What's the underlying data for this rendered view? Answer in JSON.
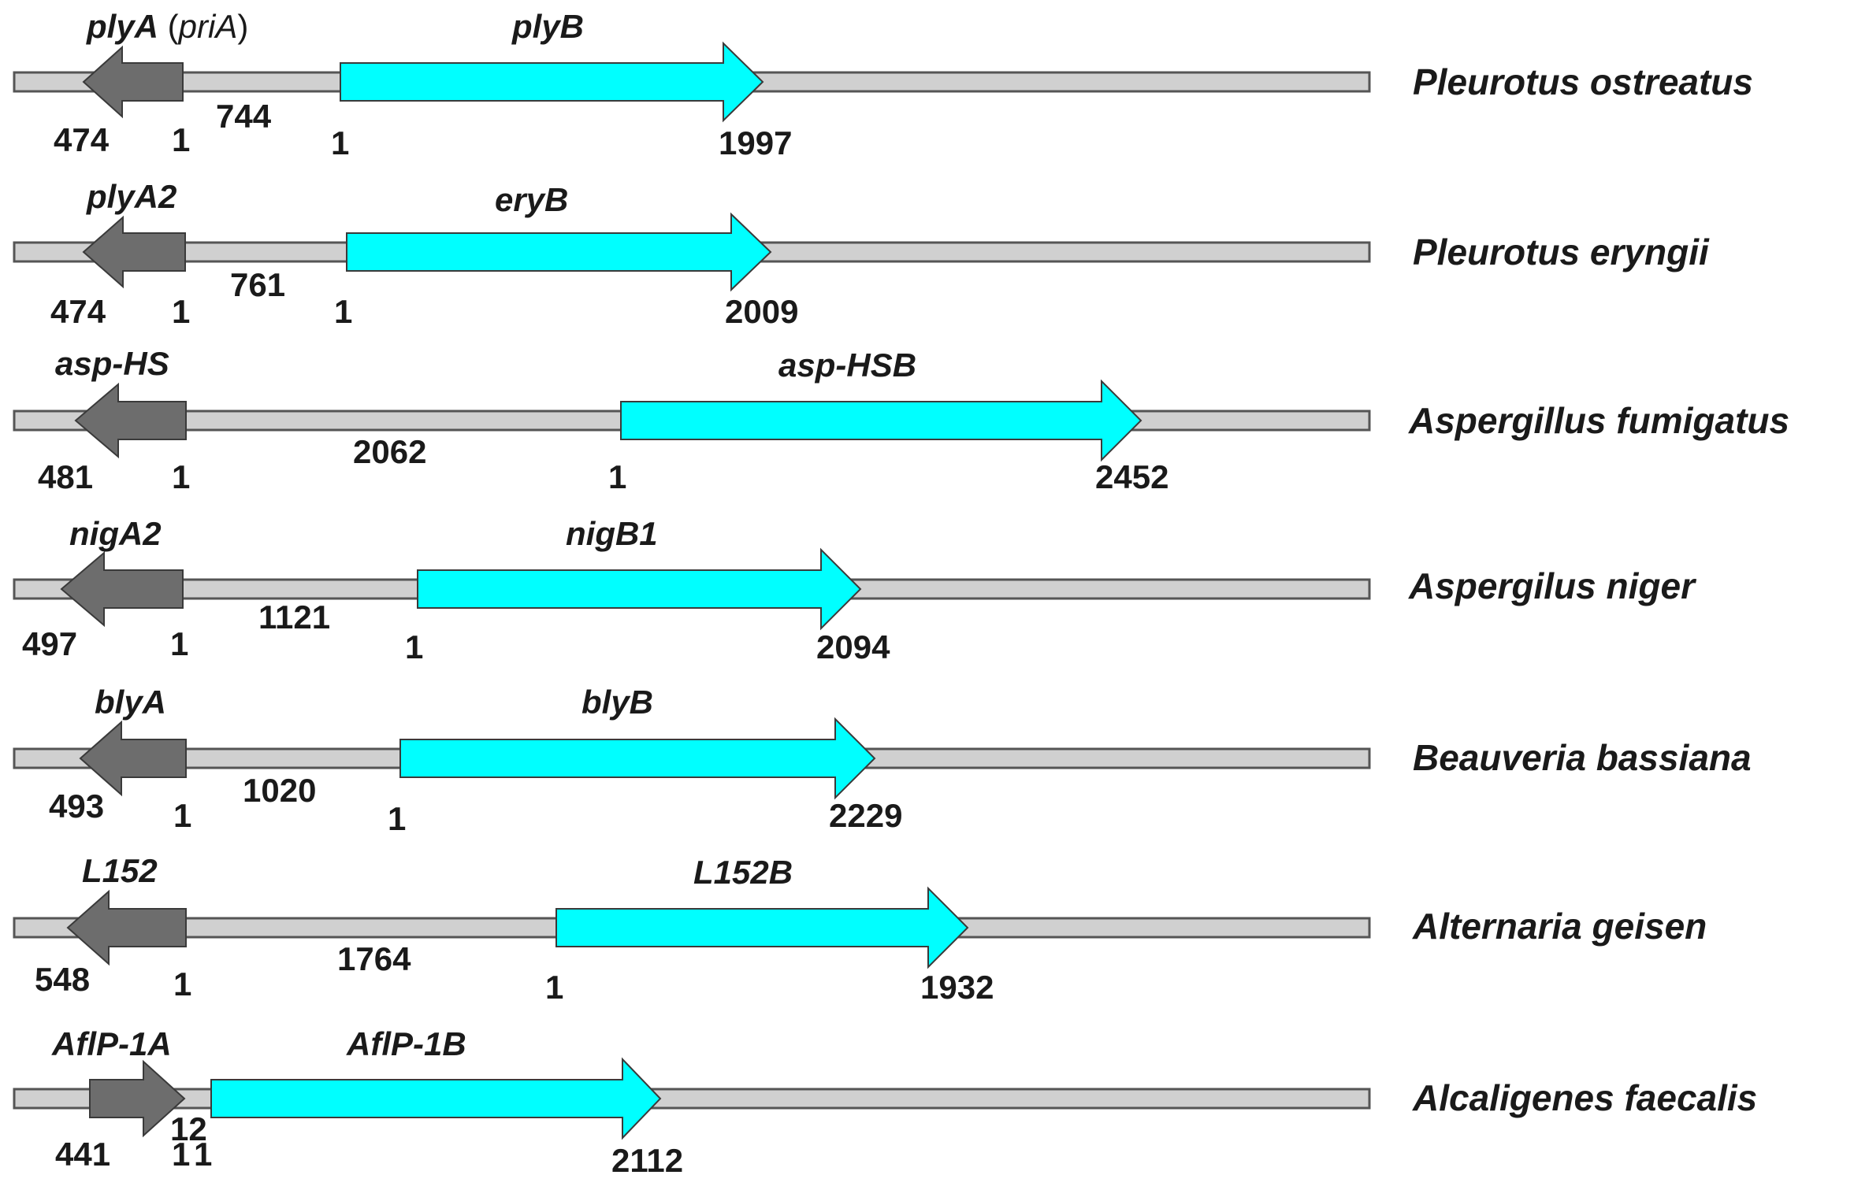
{
  "colors": {
    "backbone": "#d0d0d0",
    "backbone_stroke": "#555555",
    "gene_a": "#6d6d6d",
    "gene_b": "#00ffff",
    "arrow_stroke": "#3a3a3a"
  },
  "rows": [
    {
      "species": "Pleurotus ostreatus",
      "gene_a": "plyA",
      "gene_a_alias": "priA",
      "gene_b": "plyB",
      "a_len": "474",
      "a_start": "1",
      "intergenic": "744",
      "b_start": "1",
      "b_len": "1997"
    },
    {
      "species": "Pleurotus eryngii",
      "gene_a": "plyA2",
      "gene_b": "eryB",
      "a_len": "474",
      "a_start": "1",
      "intergenic": "761",
      "b_start": "1",
      "b_len": "2009"
    },
    {
      "species": "Aspergillus fumigatus",
      "gene_a": "asp-HS",
      "gene_b": "asp-HSB",
      "a_len": "481",
      "a_start": "1",
      "intergenic": "2062",
      "b_start": "1",
      "b_len": "2452"
    },
    {
      "species": "Aspergilus niger",
      "gene_a": "nigA2",
      "gene_b": "nigB1",
      "a_len": "497",
      "a_start": "1",
      "intergenic": "1121",
      "b_start": "1",
      "b_len": "2094"
    },
    {
      "species": "Beauveria bassiana",
      "gene_a": "blyA",
      "gene_b": "blyB",
      "a_len": "493",
      "a_start": "1",
      "intergenic": "1020",
      "b_start": "1",
      "b_len": "2229"
    },
    {
      "species": "Alternaria geisen",
      "gene_a": "L152",
      "gene_b": "L152B",
      "a_len": "548",
      "a_start": "1",
      "intergenic": "1764",
      "b_start": "1",
      "b_len": "1932"
    },
    {
      "species": "Alcaligenes faecalis",
      "gene_a": "AflP-1A",
      "gene_b": "AflP-1B",
      "a_len": "441",
      "a_start": "1",
      "intergenic": "12",
      "b_start": "1",
      "b_len": "2112",
      "a_end_extra": "1"
    }
  ]
}
